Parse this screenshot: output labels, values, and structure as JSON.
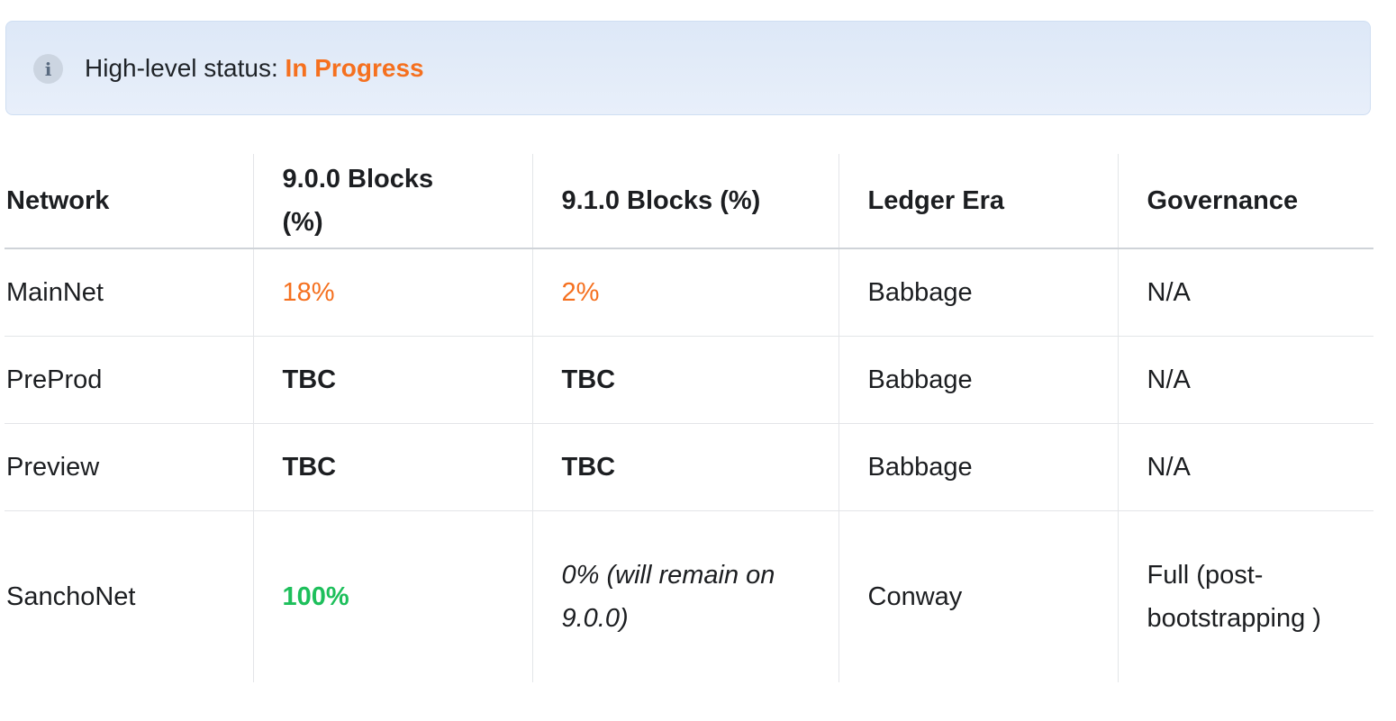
{
  "callout": {
    "icon": "info-icon",
    "label": "High-level status: ",
    "value": "In Progress",
    "value_color": "#f5701f"
  },
  "table": {
    "headers": [
      "Network",
      "9.0.0 Blocks (%)",
      "9.1.0 Blocks (%)",
      "Ledger Era",
      "Governance"
    ],
    "rows": [
      {
        "network": "MainNet",
        "blocks_900": "18%",
        "blocks_910": "2%",
        "era": "Babbage",
        "governance": "N/A"
      },
      {
        "network": "PreProd",
        "blocks_900": "TBC",
        "blocks_910": "TBC",
        "era": "Babbage",
        "governance": "N/A"
      },
      {
        "network": "Preview",
        "blocks_900": "TBC",
        "blocks_910": "TBC",
        "era": "Babbage",
        "governance": "N/A"
      },
      {
        "network": "SanchoNet",
        "blocks_900": "100%",
        "blocks_910": "0% (will remain on 9.0.0)",
        "era": "Conway",
        "governance": "Full (post-bootstrapping )"
      }
    ]
  },
  "colors": {
    "in_progress": "#f5701f",
    "complete": "#1dbf5b",
    "callout_bg": "#e3ecf8"
  }
}
